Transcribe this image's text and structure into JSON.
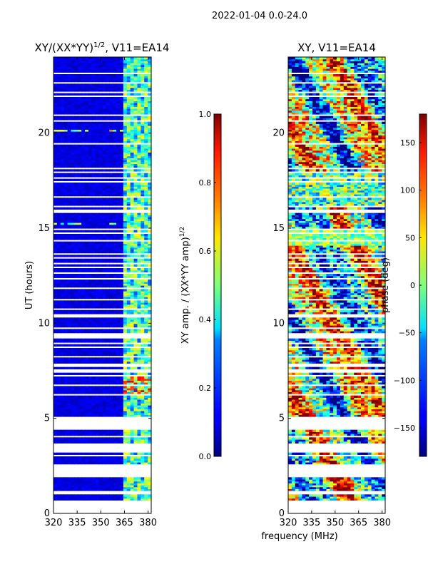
{
  "figure": {
    "suptitle": "2022-01-04 0.0-24.0",
    "shared_xlabel": "frequency (MHz)"
  },
  "chart_data": [
    {
      "type": "heatmap",
      "title_main": "XY/(XX*YY)",
      "title_sup": "1/2",
      "title_suffix": ", V11=EA14",
      "xlabel": "",
      "ylabel": "UT (hours)",
      "xlim": [
        320,
        382
      ],
      "ylim": [
        0,
        24
      ],
      "xticks": [
        320,
        335,
        350,
        365,
        380
      ],
      "yticks": [
        0,
        5,
        10,
        15,
        20
      ],
      "colorbar": {
        "label_main": "XY amp. / (XX*YY amp)",
        "label_sup": "1/2",
        "range": [
          0.0,
          1.0
        ],
        "ticks": [
          "0.0",
          "0.2",
          "0.4",
          "0.6",
          "0.8",
          "1.0"
        ],
        "colormap": "jet"
      }
    },
    {
      "type": "heatmap",
      "title_main": "XY, V11=EA14",
      "title_sup": "",
      "title_suffix": "",
      "xlabel": "frequency (MHz)",
      "ylabel": "",
      "xlim": [
        320,
        382
      ],
      "ylim": [
        0,
        24
      ],
      "xticks": [
        320,
        335,
        350,
        365,
        380
      ],
      "yticks": [
        0,
        5,
        10,
        15,
        20
      ],
      "colorbar": {
        "label_main": "phase (deg)",
        "label_sup": "",
        "range": [
          -180,
          180
        ],
        "ticks": [
          "-150",
          "-100",
          "-50",
          "0",
          "50",
          "100",
          "150"
        ],
        "colormap": "jet"
      }
    }
  ],
  "flagged_hours": [
    0.45,
    0.55,
    1.0,
    1.1,
    1.45,
    1.55,
    1.85,
    1.95,
    2.05,
    2.15,
    2.25,
    2.35,
    2.45,
    2.95,
    3.25,
    3.35,
    3.45,
    3.55,
    3.65,
    3.95,
    4.45,
    4.55,
    4.75,
    4.85,
    4.95,
    6.15,
    6.65,
    7.15,
    7.45,
    7.65,
    7.75,
    7.85,
    8.15,
    8.65,
    8.95,
    9.15,
    9.35,
    9.45,
    9.65,
    9.75,
    10.35,
    10.45,
    10.65,
    11.15,
    11.85,
    12.35,
    12.55,
    12.95,
    13.05,
    13.45,
    13.55,
    14.35,
    14.65,
    14.95,
    15.75,
    15.85,
    15.95,
    16.15,
    16.25,
    16.45,
    16.65,
    16.75,
    16.95,
    17.05,
    17.25,
    17.35,
    17.45,
    17.65,
    17.85,
    17.95,
    18.15,
    18.95,
    19.35,
    20.45,
    20.65,
    20.85,
    21.05,
    21.45,
    21.85,
    22.15,
    22.25,
    22.65,
    22.75,
    23.05,
    23.15,
    23.55,
    23.75,
    23.95
  ]
}
